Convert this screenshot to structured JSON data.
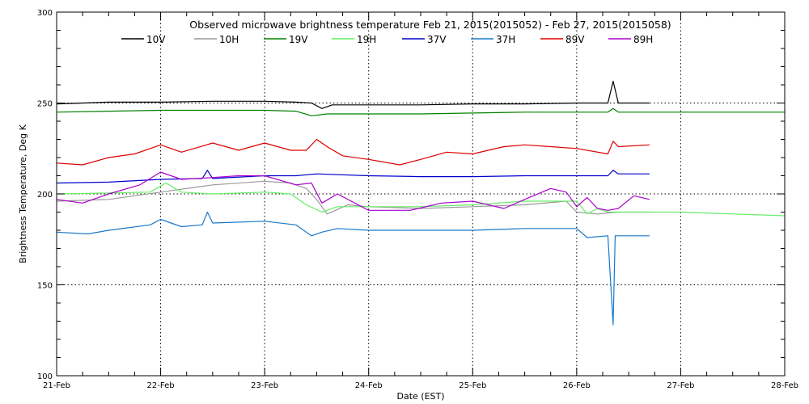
{
  "chart_data": {
    "type": "line",
    "title": "Observed microwave brightness temperature Feb 21, 2015(2015052) - Feb 27, 2015(2015058)",
    "xlabel": "Date (EST)",
    "ylabel": "Brightness Temperature, Deg K",
    "xlim": [
      0,
      7
    ],
    "ylim": [
      100,
      300
    ],
    "x_ticks": [
      {
        "x": 0,
        "label": "21-Feb"
      },
      {
        "x": 1,
        "label": "22-Feb"
      },
      {
        "x": 2,
        "label": "23-Feb"
      },
      {
        "x": 3,
        "label": "24-Feb"
      },
      {
        "x": 4,
        "label": "25-Feb"
      },
      {
        "x": 5,
        "label": "26-Feb"
      },
      {
        "x": 6,
        "label": "27-Feb"
      },
      {
        "x": 7,
        "label": "28-Feb"
      }
    ],
    "y_ticks": [
      {
        "y": 100,
        "label": "100"
      },
      {
        "y": 150,
        "label": "150"
      },
      {
        "y": 200,
        "label": "200"
      },
      {
        "y": 250,
        "label": "250"
      },
      {
        "y": 300,
        "label": "300"
      }
    ],
    "grid": "dotted at labeled ticks",
    "legend_position": "top",
    "series": [
      {
        "name": "10V",
        "color": "#000000",
        "x": [
          0,
          0.5,
          1.0,
          1.5,
          2.0,
          2.3,
          2.45,
          2.55,
          2.65,
          3.0,
          3.5,
          4.0,
          4.5,
          5.0,
          5.3,
          5.35,
          5.4,
          5.7
        ],
        "y": [
          249.5,
          250.5,
          250.5,
          251,
          251,
          250.5,
          250,
          247,
          249,
          249,
          249,
          249.5,
          249.5,
          250,
          250,
          262,
          250,
          250
        ]
      },
      {
        "name": "10H",
        "color": "#999999",
        "x": [
          0,
          0.5,
          1.0,
          1.5,
          2.0,
          2.25,
          2.4,
          2.5,
          2.6,
          2.8,
          3.0,
          3.5,
          4.0,
          4.5,
          4.9,
          5.0,
          5.2,
          5.4,
          5.7
        ],
        "y": [
          196,
          197,
          201,
          205,
          207,
          206,
          203,
          197,
          189,
          194,
          193,
          192,
          193,
          194,
          196,
          190,
          189,
          190,
          190
        ]
      },
      {
        "name": "19V",
        "color": "#008000",
        "x": [
          0,
          0.5,
          1.0,
          1.5,
          2.0,
          2.3,
          2.45,
          2.6,
          3.0,
          3.5,
          4.0,
          4.5,
          5.0,
          5.3,
          5.35,
          5.4,
          6.0,
          6.5,
          7.0
        ],
        "y": [
          245,
          245.5,
          246,
          246,
          246,
          245.5,
          243,
          244,
          244,
          244,
          244.5,
          245,
          245,
          245,
          247,
          245,
          245,
          245,
          245
        ]
      },
      {
        "name": "19H",
        "color": "#66ee66",
        "x": [
          0,
          0.5,
          0.9,
          1.05,
          1.2,
          1.5,
          2.0,
          2.25,
          2.4,
          2.55,
          2.7,
          3.0,
          3.5,
          4.0,
          4.5,
          5.0,
          5.1,
          5.2,
          5.3,
          5.7,
          6.0,
          6.5,
          7.0
        ],
        "y": [
          200,
          200.5,
          201,
          206,
          201,
          200,
          201,
          200,
          194,
          190,
          193,
          193,
          193,
          194,
          196,
          196,
          189,
          192,
          190,
          190,
          190,
          189,
          188
        ]
      },
      {
        "name": "37V",
        "color": "#0000cc",
        "x": [
          0,
          0.5,
          1.0,
          1.4,
          1.45,
          1.5,
          2.0,
          2.3,
          2.5,
          3.0,
          3.5,
          4.0,
          4.5,
          5.0,
          5.3,
          5.35,
          5.4,
          5.7
        ],
        "y": [
          206,
          206.5,
          208,
          208.5,
          213,
          208.5,
          210,
          210,
          211,
          210,
          209.5,
          209.5,
          210,
          210,
          210,
          213,
          211,
          211
        ]
      },
      {
        "name": "37H",
        "color": "#1878c8",
        "x": [
          0,
          0.3,
          0.5,
          0.9,
          1.0,
          1.2,
          1.4,
          1.45,
          1.5,
          2.0,
          2.3,
          2.45,
          2.55,
          2.7,
          3.0,
          3.5,
          4.0,
          4.5,
          5.0,
          5.1,
          5.3,
          5.35,
          5.37,
          5.4,
          5.7
        ],
        "y": [
          179,
          178,
          180,
          183,
          186,
          182,
          183,
          190,
          184,
          185,
          183,
          177,
          179,
          181,
          180,
          180,
          180,
          181,
          181,
          176,
          177,
          128,
          177,
          177,
          177
        ]
      },
      {
        "name": "89V",
        "color": "#dd0000",
        "x": [
          0,
          0.25,
          0.5,
          0.75,
          1.0,
          1.2,
          1.5,
          1.75,
          2.0,
          2.25,
          2.4,
          2.5,
          2.6,
          2.75,
          3.0,
          3.3,
          3.5,
          3.75,
          4.0,
          4.3,
          4.5,
          4.75,
          5.0,
          5.3,
          5.35,
          5.4,
          5.7
        ],
        "y": [
          217,
          216,
          220,
          222,
          227,
          223,
          228,
          224,
          228,
          224,
          224,
          230,
          226,
          221,
          219,
          216,
          219,
          223,
          222,
          226,
          227,
          226,
          225,
          222,
          229,
          226,
          227
        ]
      },
      {
        "name": "89H",
        "color": "#aa00cc",
        "x": [
          0,
          0.25,
          0.5,
          0.8,
          1.0,
          1.2,
          1.5,
          1.75,
          2.0,
          2.3,
          2.45,
          2.55,
          2.7,
          3.0,
          3.4,
          3.7,
          4.0,
          4.3,
          4.5,
          4.75,
          4.9,
          5.0,
          5.1,
          5.2,
          5.3,
          5.4,
          5.55,
          5.7
        ],
        "y": [
          197,
          195,
          200,
          205,
          212,
          208,
          209,
          210,
          210,
          205,
          206,
          195,
          200,
          191,
          191,
          195,
          196,
          192,
          197,
          203,
          201,
          193,
          198,
          192,
          191,
          192,
          199,
          197
        ]
      }
    ]
  }
}
